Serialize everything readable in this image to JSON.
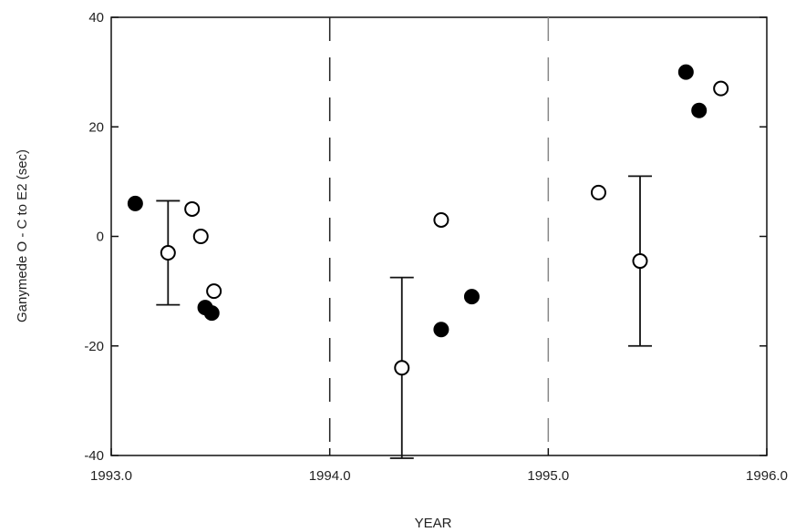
{
  "chart_data": {
    "type": "scatter",
    "title": "",
    "xlabel": "YEAR",
    "ylabel": "Ganymede O - C to E2 (sec)",
    "xlim": [
      1993.0,
      1996.0
    ],
    "ylim": [
      -40,
      40
    ],
    "x_ticks": [
      {
        "value": 1993.0,
        "label": "1993.0"
      },
      {
        "value": 1994.0,
        "label": "1994.0"
      },
      {
        "value": 1995.0,
        "label": "1995.0"
      },
      {
        "value": 1996.0,
        "label": "1996.0"
      }
    ],
    "y_ticks": [
      {
        "value": 40,
        "label": "40"
      },
      {
        "value": 20,
        "label": "20"
      },
      {
        "value": 0,
        "label": "0"
      },
      {
        "value": -20,
        "label": "-20"
      },
      {
        "value": -40,
        "label": "-40"
      }
    ],
    "vertical_dashed_lines": [
      1994.0,
      1995.0
    ],
    "grid": false,
    "series": [
      {
        "marker": "filled-circle",
        "color": "#000000",
        "points": [
          {
            "x": 1993.11,
            "y": 6
          },
          {
            "x": 1993.43,
            "y": -13
          },
          {
            "x": 1993.46,
            "y": -14
          },
          {
            "x": 1994.51,
            "y": -17
          },
          {
            "x": 1994.65,
            "y": -11
          },
          {
            "x": 1995.63,
            "y": 30
          },
          {
            "x": 1995.69,
            "y": 23
          }
        ]
      },
      {
        "marker": "open-circle",
        "color": "#000000",
        "points": [
          {
            "x": 1993.26,
            "y": -3,
            "err_low": -12.5,
            "err_high": 6.5
          },
          {
            "x": 1993.37,
            "y": 5
          },
          {
            "x": 1993.41,
            "y": 0
          },
          {
            "x": 1993.47,
            "y": -10
          },
          {
            "x": 1994.33,
            "y": -24,
            "err_low": -40.5,
            "err_high": -7.5
          },
          {
            "x": 1994.51,
            "y": 3
          },
          {
            "x": 1995.23,
            "y": 8
          },
          {
            "x": 1995.42,
            "y": -4.5,
            "err_low": -20,
            "err_high": 11
          },
          {
            "x": 1995.79,
            "y": 27
          }
        ]
      }
    ]
  }
}
